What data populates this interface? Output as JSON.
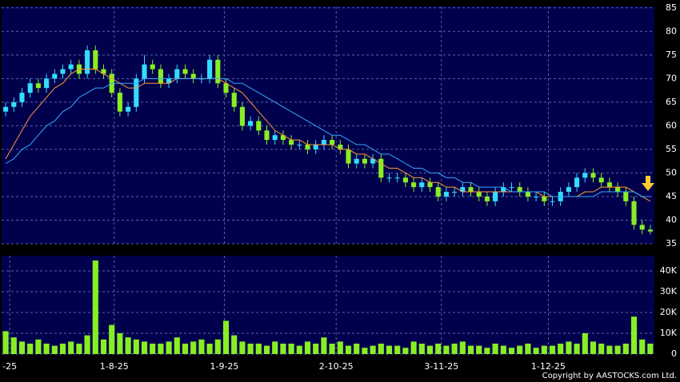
{
  "chart_data": [
    {
      "type": "candlestick",
      "categories": [
        null,
        null,
        null,
        null,
        null,
        null,
        null,
        null,
        null,
        null,
        null,
        null,
        null,
        null,
        null,
        null,
        null,
        null,
        null,
        null,
        null,
        null,
        null,
        null,
        null,
        null,
        null,
        null,
        null,
        null,
        null,
        null,
        null,
        null,
        null,
        null,
        null,
        null,
        null,
        null,
        null,
        null,
        null,
        null,
        null,
        null,
        null,
        null,
        null,
        null,
        null,
        null,
        null,
        null,
        null,
        null,
        null,
        null,
        null,
        null,
        null,
        null,
        null,
        null,
        null,
        null,
        null,
        null,
        null,
        null,
        null,
        null,
        null,
        null,
        null,
        null,
        null,
        null,
        null,
        null
      ],
      "open": [
        63,
        64,
        65,
        67,
        69,
        68,
        70,
        71,
        72,
        73,
        71,
        76,
        72,
        71,
        67,
        63,
        64,
        70,
        73,
        72,
        69,
        70,
        72,
        71,
        70,
        70,
        74,
        69,
        67,
        64,
        60,
        61,
        59,
        57,
        58,
        57,
        56,
        56,
        55,
        56,
        57,
        56,
        55,
        52,
        53,
        52,
        53,
        49,
        49,
        49,
        48,
        47,
        48,
        47,
        45,
        46,
        46,
        47,
        46,
        45,
        44,
        46,
        47,
        47,
        46,
        45,
        45,
        44,
        44,
        46,
        47,
        49,
        50,
        49,
        48,
        47,
        46,
        44,
        39,
        38
      ],
      "high": [
        65,
        66,
        68,
        70,
        70,
        71,
        72,
        73,
        74,
        74,
        77,
        77,
        73,
        72,
        68,
        65,
        71,
        75,
        74,
        73,
        71,
        73,
        73,
        72,
        71,
        75,
        75,
        70,
        68,
        65,
        62,
        62,
        60,
        59,
        59,
        58,
        57,
        57,
        57,
        58,
        58,
        57,
        56,
        54,
        54,
        54,
        54,
        50,
        50,
        50,
        49,
        49,
        49,
        48,
        47,
        47,
        48,
        48,
        47,
        46,
        47,
        48,
        48,
        48,
        47,
        46,
        46,
        45,
        47,
        48,
        50,
        51,
        51,
        50,
        49,
        48,
        47,
        45,
        40,
        39
      ],
      "low": [
        62,
        63,
        64,
        66,
        67,
        67,
        69,
        70,
        71,
        70,
        70,
        71,
        70,
        66,
        62,
        62,
        63,
        69,
        71,
        68,
        68,
        69,
        70,
        69,
        69,
        69,
        68,
        66,
        63,
        59,
        59,
        58,
        56,
        56,
        56,
        55,
        55,
        54,
        54,
        55,
        55,
        54,
        51,
        51,
        51,
        51,
        48,
        48,
        48,
        47,
        46,
        46,
        46,
        44,
        44,
        45,
        45,
        45,
        44,
        43,
        43,
        45,
        46,
        45,
        44,
        44,
        43,
        43,
        43,
        45,
        46,
        48,
        48,
        47,
        46,
        45,
        43,
        38,
        37,
        37
      ],
      "close": [
        64,
        65,
        67,
        69,
        68,
        70,
        71,
        72,
        73,
        71,
        76,
        72,
        71,
        67,
        63,
        64,
        70,
        73,
        72,
        69,
        70,
        72,
        71,
        70,
        70,
        74,
        69,
        67,
        64,
        60,
        61,
        59,
        57,
        58,
        57,
        56,
        56,
        55,
        56,
        57,
        56,
        55,
        52,
        53,
        52,
        53,
        49,
        49,
        49,
        48,
        47,
        48,
        47,
        45,
        46,
        46,
        47,
        46,
        45,
        44,
        46,
        47,
        47,
        46,
        45,
        45,
        44,
        44,
        46,
        47,
        49,
        50,
        49,
        48,
        47,
        46,
        44,
        39,
        38,
        37.6
      ],
      "up_color": "#33ddff",
      "down_color": "#88ee22",
      "series": [
        {
          "color": "#ff9933",
          "values": [
            53,
            56,
            59,
            62,
            64,
            66,
            68,
            69,
            71,
            72,
            72,
            72,
            71,
            70,
            69,
            68,
            68,
            69,
            69,
            69,
            69,
            70,
            70,
            70,
            70,
            70,
            70,
            69,
            68,
            67,
            65,
            63,
            61,
            59,
            58,
            57,
            57,
            56,
            56,
            56,
            56,
            55,
            55,
            54,
            54,
            53,
            52,
            51,
            51,
            50,
            49,
            49,
            48,
            48,
            47,
            47,
            46,
            46,
            46,
            46,
            46,
            46,
            46,
            46,
            46,
            46,
            45,
            45,
            45,
            45,
            45,
            46,
            46,
            47,
            47,
            47,
            47,
            46,
            45,
            44
          ]
        },
        {
          "color": "#33aaff",
          "values": [
            52,
            53,
            55,
            56,
            58,
            60,
            61,
            63,
            64,
            66,
            67,
            68,
            68,
            69,
            69,
            69,
            69,
            70,
            70,
            70,
            70,
            70,
            70,
            70,
            70,
            70,
            70,
            70,
            69,
            69,
            68,
            67,
            66,
            65,
            64,
            63,
            62,
            61,
            60,
            59,
            58,
            58,
            57,
            56,
            56,
            55,
            54,
            54,
            53,
            52,
            51,
            51,
            50,
            50,
            49,
            49,
            48,
            48,
            47,
            47,
            47,
            47,
            46,
            46,
            46,
            46,
            46,
            45,
            45,
            45,
            45,
            45,
            45,
            46,
            46,
            46,
            46,
            46,
            45,
            45
          ]
        }
      ],
      "xlim": [
        0,
        80
      ],
      "xticks": [
        {
          "value": 13.8,
          "label": "1-8-25"
        },
        {
          "value": 27.3,
          "label": "1-9-25"
        },
        {
          "value": 41,
          "label": "2-10-25"
        },
        {
          "value": 53.9,
          "label": "3-11-25"
        },
        {
          "value": 67,
          "label": "1-12-25"
        }
      ],
      "ylim": [
        35,
        85.3
      ],
      "yticks": [
        35,
        40,
        45,
        50,
        55,
        60,
        65,
        70,
        75,
        80,
        85
      ],
      "grid": true
    },
    {
      "type": "bar",
      "color": "#88ee22",
      "values": [
        11000,
        8000,
        6000,
        5000,
        7000,
        5000,
        4000,
        5000,
        6000,
        5000,
        9000,
        45000,
        7000,
        14000,
        10000,
        8000,
        7000,
        6000,
        5000,
        5000,
        6000,
        8000,
        5000,
        6000,
        7000,
        5000,
        7000,
        16000,
        9000,
        6000,
        5000,
        5000,
        4000,
        6000,
        5000,
        5000,
        4000,
        6000,
        5000,
        8000,
        5000,
        6000,
        4000,
        5000,
        3000,
        4000,
        5000,
        4000,
        4000,
        3000,
        6000,
        5000,
        4000,
        5000,
        4000,
        5000,
        6000,
        4000,
        4000,
        3000,
        5000,
        4000,
        3000,
        4000,
        5000,
        3000,
        4000,
        4000,
        5000,
        6000,
        5000,
        10000,
        6000,
        5000,
        4000,
        4000,
        5000,
        18000,
        7000,
        5000
      ],
      "xlim": [
        0,
        80
      ],
      "xticks": [
        {
          "value": 1,
          "label": "-25"
        },
        {
          "value": 13.8,
          "label": "1-8-25"
        },
        {
          "value": 27.3,
          "label": "1-9-25"
        },
        {
          "value": 41,
          "label": "2-10-25"
        },
        {
          "value": 53.9,
          "label": "3-11-25"
        },
        {
          "value": 67,
          "label": "1-12-25"
        }
      ],
      "ylim": [
        0,
        47300
      ],
      "yticks": [
        0,
        {
          "value": 10000,
          "label": "10K"
        },
        {
          "value": 20000,
          "label": "20K"
        },
        {
          "value": 30000,
          "label": "30K"
        },
        {
          "value": 40000,
          "label": "40K"
        }
      ],
      "grid": true,
      "annotation": "Copyright by AASTOCKS.com Ltd."
    }
  ]
}
